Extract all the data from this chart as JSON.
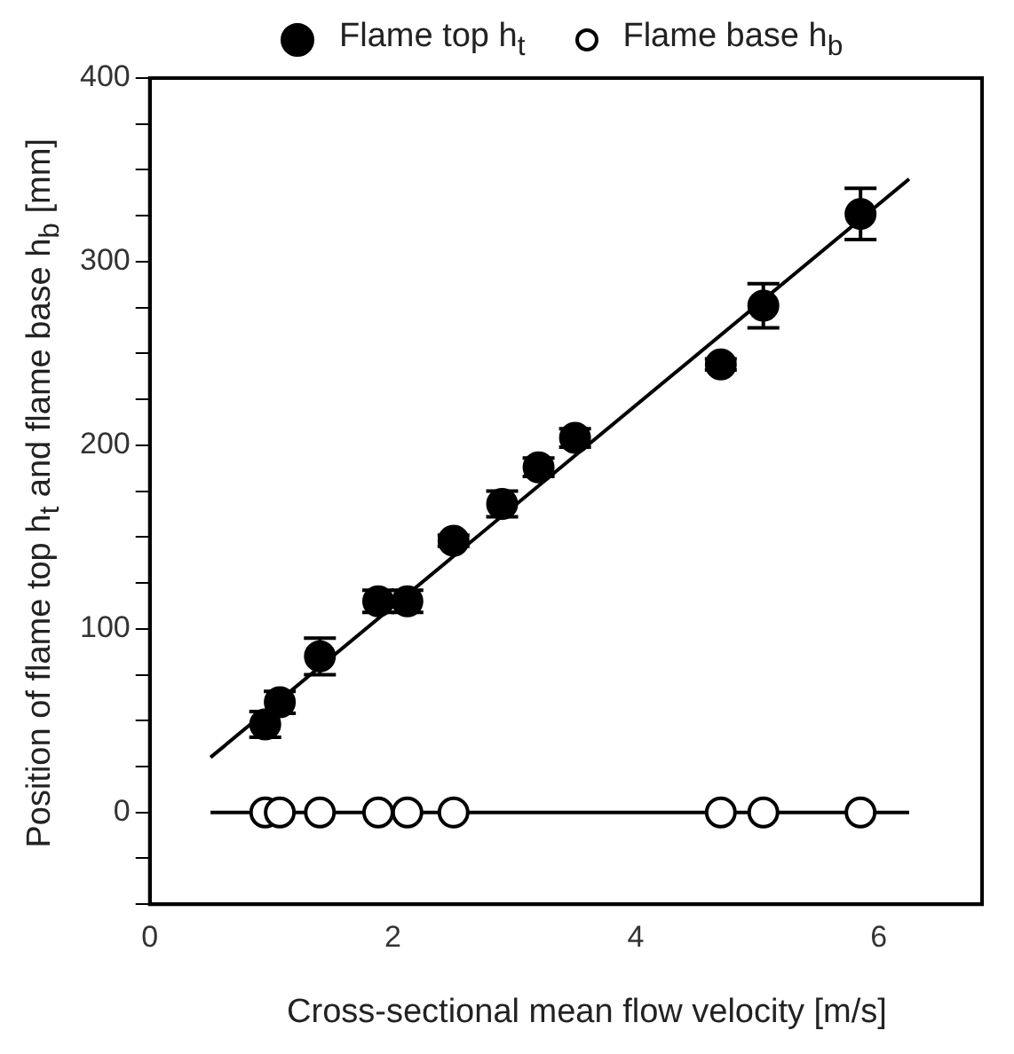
{
  "chart_data": {
    "type": "scatter",
    "xlabel": "Cross-sectional mean flow velocity [m/s]",
    "ylabel": "Position of flame top h$_{t}$ and flame base h$_{b}$ [mm]",
    "xlim": [
      0,
      6.85
    ],
    "xticks": [
      0,
      2,
      4,
      6
    ],
    "ylim": [
      -50,
      400
    ],
    "yticks": [
      {
        "value": -50,
        "label": null
      },
      {
        "value": -25,
        "label": null
      },
      0,
      {
        "value": 25,
        "label": null
      },
      {
        "value": 50,
        "label": null
      },
      {
        "value": 75,
        "label": null
      },
      100,
      {
        "value": 125,
        "label": null
      },
      {
        "value": 150,
        "label": null
      },
      {
        "value": 175,
        "label": null
      },
      200,
      {
        "value": 225,
        "label": null
      },
      {
        "value": 250,
        "label": null
      },
      {
        "value": 275,
        "label": null
      },
      300,
      {
        "value": 325,
        "label": null
      },
      {
        "value": 350,
        "label": null
      },
      {
        "value": 375,
        "label": null
      },
      400
    ],
    "grid": false,
    "legend": "top",
    "marker": "circle",
    "series": [
      {
        "name": "Flame top h$_{t}$",
        "color": "#000000",
        "x": [
          0.95,
          1.07,
          1.4,
          1.88,
          2.12,
          2.5,
          2.9,
          3.2,
          3.5,
          4.7,
          5.05,
          5.85
        ],
        "values": [
          48,
          60,
          85,
          115,
          115,
          148,
          168,
          188,
          204,
          244,
          276,
          326
        ],
        "errors": [
          7,
          6,
          10,
          6,
          6,
          3,
          7,
          5,
          5,
          3,
          12,
          14
        ]
      },
      {
        "name": "Flame base h$_{b}$",
        "color": "#000000",
        "x": [
          0.95,
          1.07,
          1.4,
          1.88,
          2.12,
          2.5,
          4.7,
          5.05,
          5.85
        ],
        "values": [
          0,
          0,
          0,
          0,
          0,
          0,
          0,
          0,
          0
        ]
      },
      {
        "type": "line",
        "marker": "none",
        "color": "#000000",
        "x": [
          0.5,
          6.25
        ],
        "values": [
          30,
          345
        ]
      },
      {
        "type": "line",
        "marker": "none",
        "color": "#000000",
        "x": [
          0.5,
          6.25
        ],
        "values": [
          0,
          0
        ]
      }
    ]
  }
}
